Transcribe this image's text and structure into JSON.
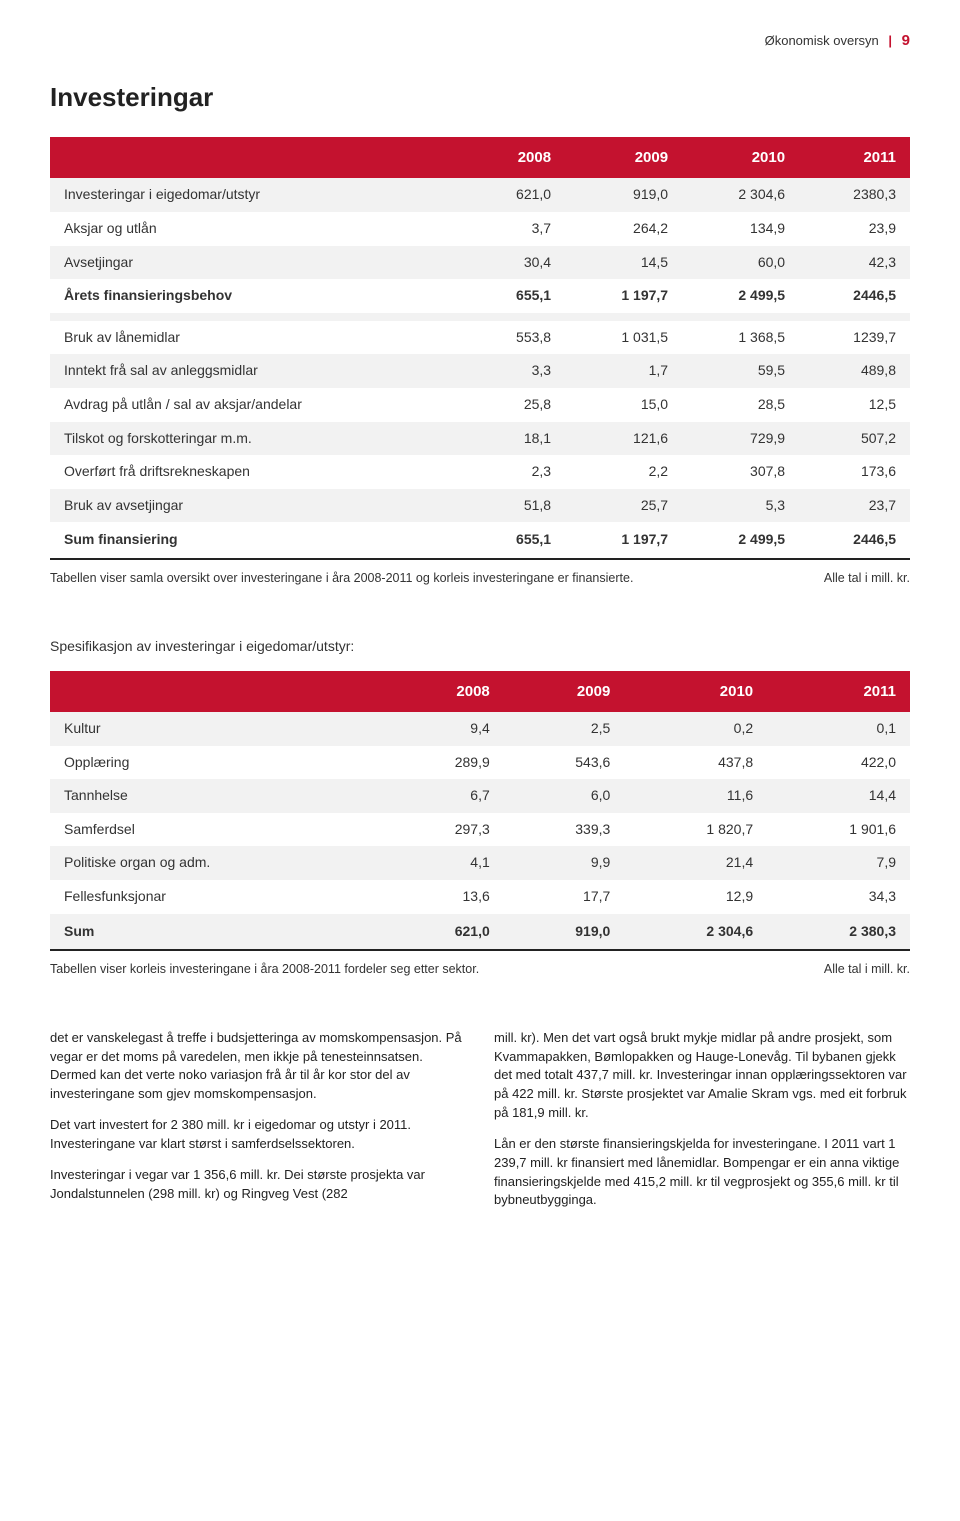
{
  "header": {
    "breadcrumb": "Økonomisk oversyn",
    "page_number": "9"
  },
  "section_title": "Investeringar",
  "table1": {
    "headers": [
      "",
      "2008",
      "2009",
      "2010",
      "2011"
    ],
    "rows": [
      {
        "label": "Investeringar i eigedomar/utstyr",
        "cells": [
          "621,0",
          "919,0",
          "2 304,6",
          "2380,3"
        ],
        "style": "odd"
      },
      {
        "label": "Aksjar og utlån",
        "cells": [
          "3,7",
          "264,2",
          "134,9",
          "23,9"
        ],
        "style": "even"
      },
      {
        "label": "Avsetjingar",
        "cells": [
          "30,4",
          "14,5",
          "60,0",
          "42,3"
        ],
        "style": "odd"
      },
      {
        "label": "Årets finansieringsbehov",
        "cells": [
          "655,1",
          "1 197,7",
          "2 499,5",
          "2446,5"
        ],
        "style": "even bold"
      },
      {
        "label": "",
        "cells": [
          "",
          "",
          "",
          ""
        ],
        "style": "odd blank"
      },
      {
        "label": "Bruk av lånemidlar",
        "cells": [
          "553,8",
          "1 031,5",
          "1 368,5",
          "1239,7"
        ],
        "style": "even"
      },
      {
        "label": "Inntekt frå sal av anleggsmidlar",
        "cells": [
          "3,3",
          "1,7",
          "59,5",
          "489,8"
        ],
        "style": "odd"
      },
      {
        "label": "Avdrag på utlån / sal av aksjar/andelar",
        "cells": [
          "25,8",
          "15,0",
          "28,5",
          "12,5"
        ],
        "style": "even"
      },
      {
        "label": "Tilskot og forskotteringar m.m.",
        "cells": [
          "18,1",
          "121,6",
          "729,9",
          "507,2"
        ],
        "style": "odd"
      },
      {
        "label": "Overført frå driftsrekneskapen",
        "cells": [
          "2,3",
          "2,2",
          "307,8",
          "173,6"
        ],
        "style": "even"
      },
      {
        "label": "Bruk av avsetjingar",
        "cells": [
          "51,8",
          "25,7",
          "5,3",
          "23,7"
        ],
        "style": "odd"
      },
      {
        "label": "Sum finansiering",
        "cells": [
          "655,1",
          "1 197,7",
          "2 499,5",
          "2446,5"
        ],
        "style": "even sum"
      }
    ],
    "caption": "Tabellen viser samla oversikt over investeringane i åra 2008-2011 og korleis investeringane er finansierte.",
    "note": "Alle tal i mill. kr."
  },
  "sub_heading": "Spesifikasjon av investeringar i eigedomar/utstyr:",
  "table2": {
    "headers": [
      "",
      "2008",
      "2009",
      "2010",
      "2011"
    ],
    "rows": [
      {
        "label": "Kultur",
        "cells": [
          "9,4",
          "2,5",
          "0,2",
          "0,1"
        ],
        "style": "odd"
      },
      {
        "label": "Opplæring",
        "cells": [
          "289,9",
          "543,6",
          "437,8",
          "422,0"
        ],
        "style": "even"
      },
      {
        "label": "Tannhelse",
        "cells": [
          "6,7",
          "6,0",
          "11,6",
          "14,4"
        ],
        "style": "odd"
      },
      {
        "label": "Samferdsel",
        "cells": [
          "297,3",
          "339,3",
          "1 820,7",
          "1 901,6"
        ],
        "style": "even"
      },
      {
        "label": "Politiske organ og adm.",
        "cells": [
          "4,1",
          "9,9",
          "21,4",
          "7,9"
        ],
        "style": "odd"
      },
      {
        "label": "Fellesfunksjonar",
        "cells": [
          "13,6",
          "17,7",
          "12,9",
          "34,3"
        ],
        "style": "even"
      },
      {
        "label": "Sum",
        "cells": [
          "621,0",
          "919,0",
          "2 304,6",
          "2 380,3"
        ],
        "style": "odd sum"
      }
    ],
    "caption": "Tabellen viser korleis investeringane i åra 2008-2011 fordeler seg etter sektor.",
    "note": "Alle tal i mill. kr."
  },
  "body": {
    "left": [
      "det er vanskelegast å treffe i budsjetteringa av momskompensasjon. På vegar er det moms på varedelen, men ikkje på tenesteinnsatsen. Dermed kan det verte noko variasjon frå år til år kor stor del av investeringane som gjev momskompensasjon.",
      "Det vart investert for 2 380 mill. kr i eigedomar og utstyr i 2011. Investeringane var klart størst i samferdselssektoren.",
      "Investeringar i vegar var 1 356,6 mill. kr. Dei største prosjekta var Jondalstunnelen (298 mill. kr) og Ringveg Vest (282"
    ],
    "right": [
      "mill. kr). Men det vart også brukt mykje midlar på andre prosjekt, som Kvammapakken, Bømlopakken og Hauge-Lonevåg. Til bybanen gjekk det med totalt 437,7 mill. kr. Investeringar innan opplæringssektoren var på 422 mill. kr. Største prosjektet var Amalie Skram vgs. med eit forbruk på 181,9 mill. kr.",
      "Lån er den største finansieringskjelda for investeringane. I 2011 vart 1 239,7 mill. kr finansiert med lånemidlar. Bompengar er ein anna viktige finansieringskjelde med 415,2 mill. kr til vegprosjekt og 355,6 mill. kr til bybneutbygginga."
    ]
  },
  "style": {
    "accent": "#c4122f",
    "row_odd_bg": "#f2f2f2",
    "row_even_bg": "#ffffff",
    "text_color": "#222222"
  }
}
